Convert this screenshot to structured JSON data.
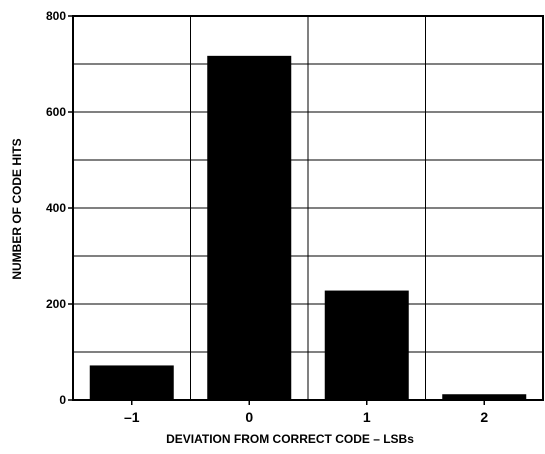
{
  "chart_data": {
    "type": "bar",
    "categories": [
      "–1",
      "0",
      "1",
      "2"
    ],
    "values": [
      72,
      717,
      228,
      12
    ],
    "title": "",
    "xlabel": "DEVIATION FROM CORRECT CODE – LSBs",
    "ylabel": "NUMBER OF CODE HITS",
    "ylim": [
      0,
      800
    ],
    "yticks": [
      0,
      200,
      400,
      600,
      800
    ],
    "grid": true,
    "legend": "none",
    "colors": {
      "bar": "#000000",
      "grid": "#000000",
      "background": "#ffffff"
    }
  }
}
